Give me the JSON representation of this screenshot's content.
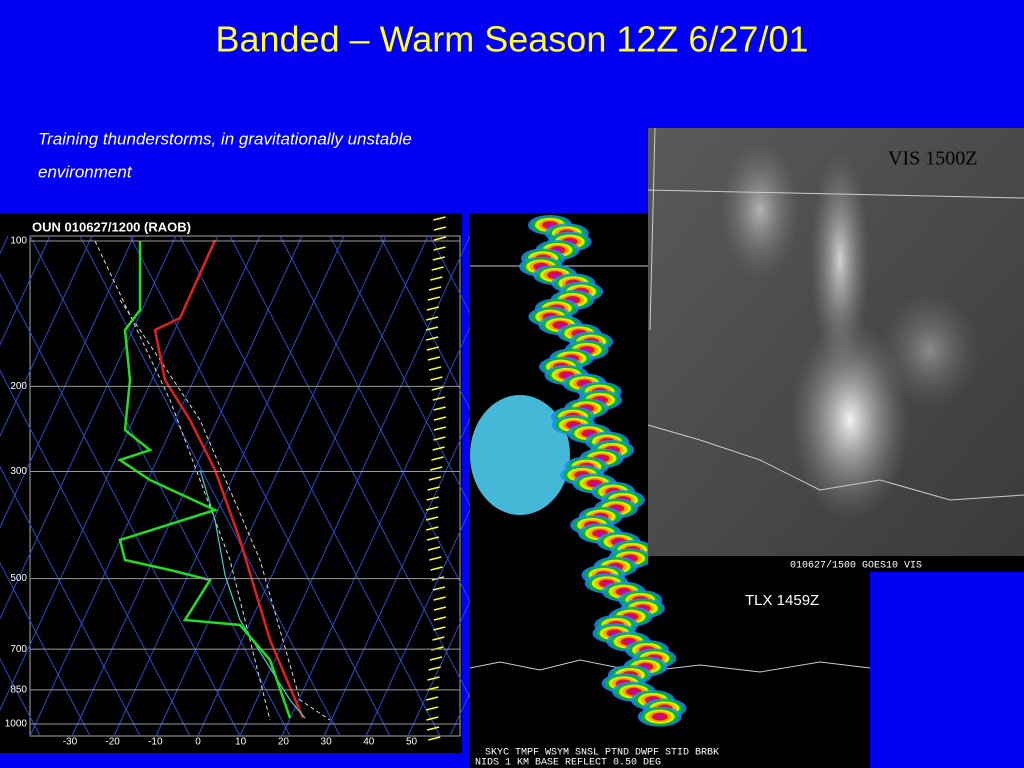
{
  "slide": {
    "title": "Banded – Warm Season 12Z  6/27/01",
    "subtitle_lines": [
      "Training thunderstorms, in gravitationally unstable",
      "environment"
    ],
    "sounding": {
      "header": "OUN  010627/1200  (RAOB)",
      "pressure_labels": [
        100,
        200,
        300,
        500,
        700,
        850,
        1000
      ],
      "temperature_labels": [
        -30,
        -20,
        -10,
        0,
        10,
        20,
        30,
        40,
        50
      ]
    },
    "radar": {
      "label": "TLX 1459Z",
      "footer_lines": [
        "SKYC TMPF WSYM SNSL PTND DWPF STID BRBK",
        "NIDS  1 KM  BASE  REFLECT 0.50 DEG"
      ]
    },
    "satellite": {
      "label": "VIS 1500Z",
      "caption": "010627/1500 GOES10  VIS"
    }
  }
}
